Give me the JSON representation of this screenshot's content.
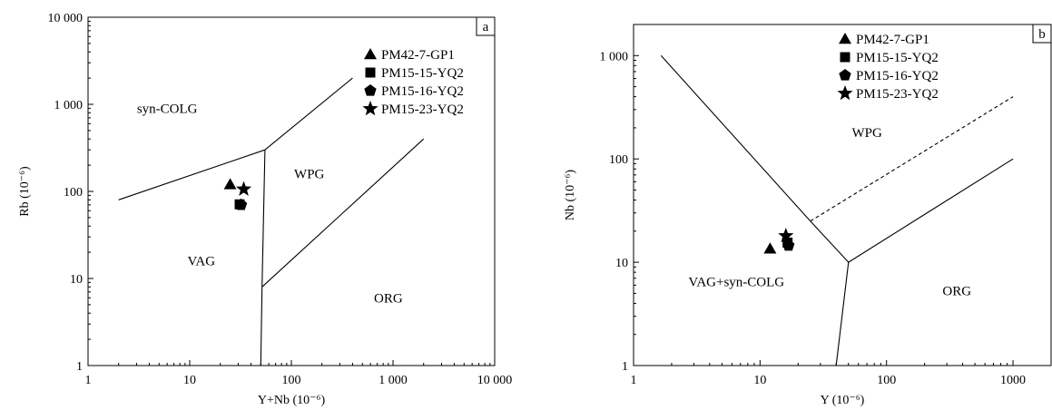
{
  "chart_data": [
    {
      "type": "scatter",
      "panel_label": "a",
      "xlabel": "Y+Nb (10⁻⁶)",
      "ylabel": "Rb (10⁻⁶)",
      "xscale": "log",
      "yscale": "log",
      "xlim": [
        1,
        10000
      ],
      "ylim": [
        1,
        10000
      ],
      "x_ticks": [
        {
          "value": 1,
          "label": "1"
        },
        {
          "value": 10,
          "label": "10"
        },
        {
          "value": 100,
          "label": "100"
        },
        {
          "value": 1000,
          "label": "1 000"
        },
        {
          "value": 10000,
          "label": "10 000"
        }
      ],
      "y_ticks": [
        {
          "value": 1,
          "label": "1"
        },
        {
          "value": 10,
          "label": "10"
        },
        {
          "value": 100,
          "label": "100"
        },
        {
          "value": 1000,
          "label": "1 000"
        },
        {
          "value": 10000,
          "label": "10 000"
        }
      ],
      "boundaries": [
        {
          "style": "solid",
          "points": [
            [
              2,
              80
            ],
            [
              55,
              300
            ]
          ]
        },
        {
          "style": "solid",
          "points": [
            [
              55,
              300
            ],
            [
              400,
              2000
            ]
          ]
        },
        {
          "style": "solid",
          "points": [
            [
              55,
              300
            ],
            [
              51.5,
              8
            ]
          ]
        },
        {
          "style": "solid",
          "points": [
            [
              51.5,
              8
            ],
            [
              50,
              1
            ]
          ]
        },
        {
          "style": "solid",
          "points": [
            [
              51.5,
              8
            ],
            [
              2000,
              400
            ]
          ]
        }
      ],
      "fields": [
        {
          "label": "syn-COLG",
          "x": 6,
          "y": 900
        },
        {
          "label": "WPG",
          "x": 150,
          "y": 160
        },
        {
          "label": "VAG",
          "x": 13,
          "y": 16
        },
        {
          "label": "ORG",
          "x": 900,
          "y": 6
        }
      ],
      "legend_position": "top-right",
      "series": [
        {
          "name": "PM42-7-GP1",
          "marker": "triangle",
          "points": [
            [
              25,
              120
            ]
          ]
        },
        {
          "name": "PM15-15-YQ2",
          "marker": "square",
          "points": [
            [
              31,
              71
            ]
          ]
        },
        {
          "name": "PM15-16-YQ2",
          "marker": "pentagon",
          "points": [
            [
              32,
              70
            ]
          ]
        },
        {
          "name": "PM15-23-YQ2",
          "marker": "star",
          "points": [
            [
              34,
              106
            ]
          ]
        }
      ]
    },
    {
      "type": "scatter",
      "panel_label": "b",
      "xlabel": "Y (10⁻⁶)",
      "ylabel": "Nb (10⁻⁶)",
      "xscale": "log",
      "yscale": "log",
      "xlim": [
        1,
        2000
      ],
      "ylim": [
        1,
        2000
      ],
      "x_ticks": [
        {
          "value": 1,
          "label": "1"
        },
        {
          "value": 10,
          "label": "10"
        },
        {
          "value": 100,
          "label": "100"
        },
        {
          "value": 1000,
          "label": "1000"
        }
      ],
      "y_ticks": [
        {
          "value": 1,
          "label": "1"
        },
        {
          "value": 10,
          "label": "10"
        },
        {
          "value": 100,
          "label": "100"
        },
        {
          "value": 1000,
          "label": "1 000"
        }
      ],
      "boundaries": [
        {
          "style": "solid",
          "points": [
            [
              1.65,
              1000
            ],
            [
              25,
              25
            ],
            [
              50,
              10
            ]
          ]
        },
        {
          "style": "solid",
          "points": [
            [
              50,
              10
            ],
            [
              1000,
              100
            ]
          ]
        },
        {
          "style": "solid",
          "points": [
            [
              50,
              10
            ],
            [
              40,
              1
            ]
          ]
        },
        {
          "style": "dashed",
          "points": [
            [
              25,
              25
            ],
            [
              1000,
              400
            ]
          ]
        }
      ],
      "fields": [
        {
          "label": "WPG",
          "x": 70,
          "y": 180
        },
        {
          "label": "VAG+syn-COLG",
          "x": 6.5,
          "y": 6.5
        },
        {
          "label": "ORG",
          "x": 360,
          "y": 5.3
        }
      ],
      "legend_position": "top-right",
      "series": [
        {
          "name": "PM42-7-GP1",
          "marker": "triangle",
          "points": [
            [
              12,
              13.5
            ]
          ]
        },
        {
          "name": "PM15-15-YQ2",
          "marker": "square",
          "points": [
            [
              16.5,
              15.5
            ]
          ]
        },
        {
          "name": "PM15-16-YQ2",
          "marker": "pentagon",
          "points": [
            [
              16.8,
              14.5
            ]
          ]
        },
        {
          "name": "PM15-23-YQ2",
          "marker": "star",
          "points": [
            [
              16,
              18
            ]
          ]
        }
      ]
    }
  ]
}
